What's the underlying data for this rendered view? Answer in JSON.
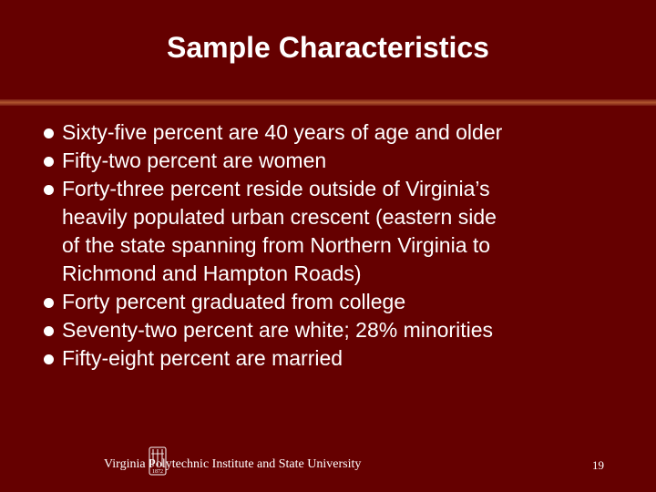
{
  "slide": {
    "title": "Sample Characteristics",
    "bullets": [
      {
        "lines": [
          "Sixty-five percent are 40 years of age and older"
        ]
      },
      {
        "lines": [
          "Fifty-two percent are women"
        ]
      },
      {
        "lines": [
          "Forty-three percent reside outside of Virginia’s",
          "heavily populated urban crescent (eastern side",
          "of the state spanning from Northern Virginia to",
          "Richmond and Hampton Roads)"
        ]
      },
      {
        "lines": [
          "Forty percent graduated from college"
        ]
      },
      {
        "lines": [
          "Seventy-two percent are white; 28% minorities"
        ]
      },
      {
        "lines": [
          "Fifty-eight percent are married"
        ]
      }
    ]
  },
  "footer": {
    "institution": "Virginia Polytechnic Institute and State University",
    "seal_text": "1872",
    "page_number": "19"
  },
  "colors": {
    "background": "#650000",
    "rule": "#b0542e",
    "text": "#ffffff"
  }
}
